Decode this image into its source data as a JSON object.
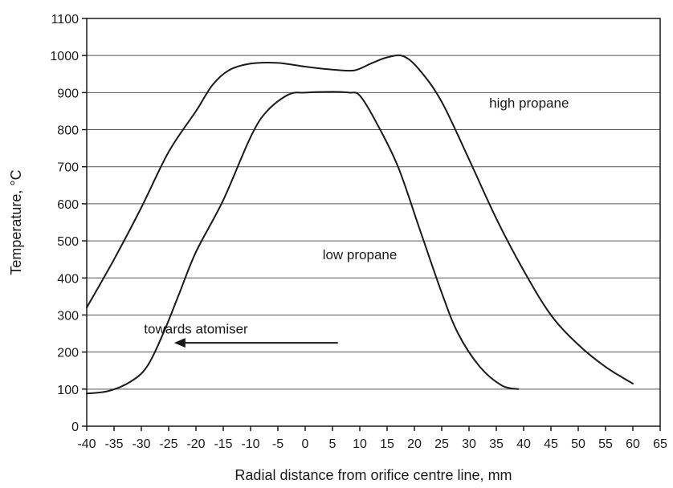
{
  "chart_data": {
    "type": "line",
    "xlabel": "Radial distance from orifice centre line, mm",
    "ylabel": "Temperature, °C",
    "xlim": [
      -40,
      65
    ],
    "ylim": [
      0,
      1100
    ],
    "x_ticks": [
      -40,
      -35,
      -30,
      -25,
      -20,
      -15,
      -10,
      -5,
      0,
      5,
      10,
      15,
      20,
      25,
      30,
      35,
      40,
      45,
      50,
      55,
      60,
      65
    ],
    "x_tick_labels": [
      "-40",
      "-35",
      "-30",
      "-25",
      "-20",
      "-15",
      "-10",
      "-5",
      "0",
      "5",
      "10",
      "15",
      "20",
      "25",
      "30",
      "35",
      "40",
      "45",
      "50",
      "55",
      "60",
      "65"
    ],
    "y_ticks": [
      0,
      100,
      200,
      300,
      400,
      500,
      600,
      700,
      800,
      900,
      1000,
      1100
    ],
    "y_tick_labels": [
      "0",
      "100",
      "200",
      "300",
      "400",
      "500",
      "600",
      "700",
      "800",
      "900",
      "1000",
      "1100"
    ],
    "grid": "horizontal",
    "series": [
      {
        "name": "high propane",
        "points": [
          [
            -40,
            320
          ],
          [
            -35,
            450
          ],
          [
            -30,
            590
          ],
          [
            -25,
            740
          ],
          [
            -20,
            850
          ],
          [
            -17,
            920
          ],
          [
            -14,
            960
          ],
          [
            -10,
            978
          ],
          [
            -5,
            980
          ],
          [
            0,
            970
          ],
          [
            5,
            962
          ],
          [
            9,
            960
          ],
          [
            12,
            978
          ],
          [
            15,
            995
          ],
          [
            18,
            998
          ],
          [
            21,
            960
          ],
          [
            25,
            875
          ],
          [
            30,
            720
          ],
          [
            35,
            560
          ],
          [
            40,
            420
          ],
          [
            45,
            300
          ],
          [
            50,
            220
          ],
          [
            55,
            160
          ],
          [
            60,
            115
          ]
        ]
      },
      {
        "name": "low propane",
        "points": [
          [
            -40,
            88
          ],
          [
            -36,
            95
          ],
          [
            -32,
            120
          ],
          [
            -29,
            160
          ],
          [
            -26,
            250
          ],
          [
            -23,
            360
          ],
          [
            -20,
            470
          ],
          [
            -15,
            610
          ],
          [
            -10,
            780
          ],
          [
            -7,
            850
          ],
          [
            -3,
            895
          ],
          [
            0,
            900
          ],
          [
            5,
            902
          ],
          [
            8,
            900
          ],
          [
            10,
            892
          ],
          [
            13,
            820
          ],
          [
            17,
            700
          ],
          [
            21,
            530
          ],
          [
            25,
            360
          ],
          [
            28,
            250
          ],
          [
            32,
            160
          ],
          [
            36,
            110
          ],
          [
            39,
            100
          ]
        ]
      }
    ],
    "annotations": [
      {
        "text": "towards atomiser",
        "x": -20,
        "y": 250
      },
      {
        "text": "low propane",
        "x": 10,
        "y": 450
      },
      {
        "text": "high propane",
        "x": 41,
        "y": 860
      }
    ],
    "arrow": {
      "from": [
        6,
        225
      ],
      "to": [
        -24,
        225
      ]
    }
  }
}
